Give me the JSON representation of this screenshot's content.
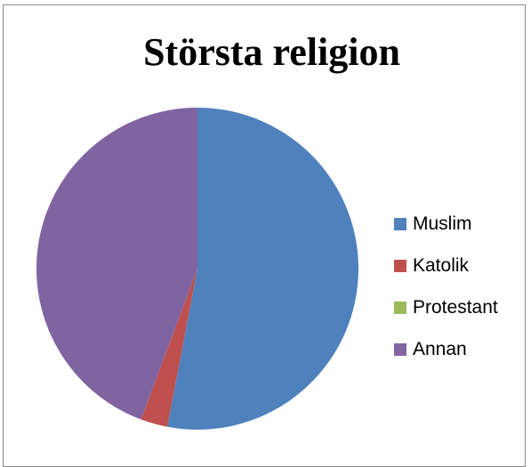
{
  "chart_data": {
    "type": "pie",
    "title": "Största religion",
    "categories": [
      "Muslim",
      "Katolik",
      "Protestant",
      "Annan"
    ],
    "values": [
      53,
      2.7,
      0,
      44.3
    ],
    "colors": [
      "#4f81bd",
      "#c0504d",
      "#9bbb59",
      "#8064a2"
    ],
    "legend_position": "right"
  }
}
